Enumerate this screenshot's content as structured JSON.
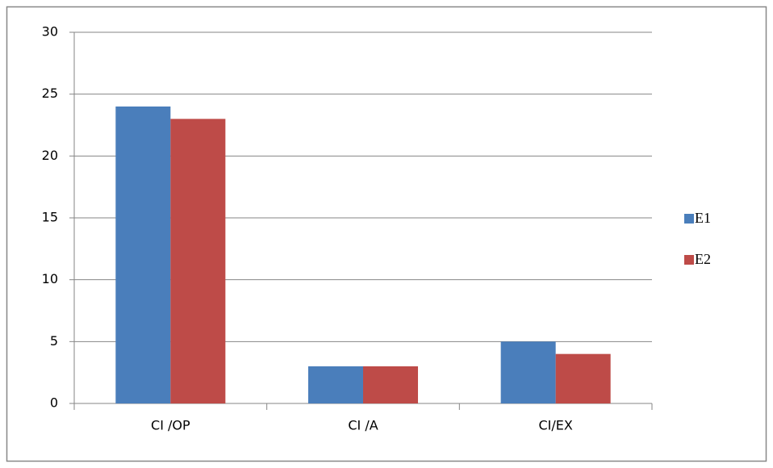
{
  "chart_data": {
    "type": "bar",
    "categories": [
      "CI /OP",
      "CI /A",
      "CI/EX"
    ],
    "series": [
      {
        "name": "E1",
        "color": "#4a7ebb",
        "values": [
          24,
          3,
          5
        ]
      },
      {
        "name": "E2",
        "color": "#be4b48",
        "values": [
          23,
          3,
          4
        ]
      }
    ],
    "ylim": [
      0,
      30
    ],
    "yticks": [
      0,
      5,
      10,
      15,
      20,
      25,
      30
    ],
    "grid": true,
    "legend": "right"
  }
}
